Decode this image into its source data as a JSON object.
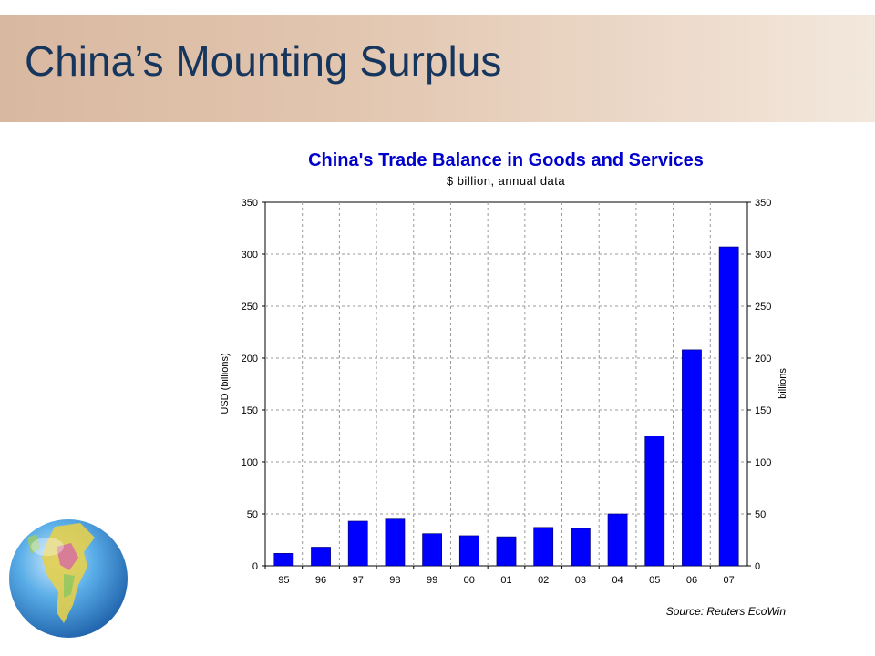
{
  "slide": {
    "title": "China’s Mounting Surplus"
  },
  "chart_data": {
    "type": "bar",
    "title": "China's Trade Balance in Goods and Services",
    "subtitle": "$ billion, annual data",
    "ylabel": "USD (billions)",
    "ylabel_right": "billions",
    "ylim": [
      0,
      350
    ],
    "yticks": [
      0,
      50,
      100,
      150,
      200,
      250,
      300,
      350
    ],
    "grid": true,
    "categories": [
      "95",
      "96",
      "97",
      "98",
      "99",
      "00",
      "01",
      "02",
      "03",
      "04",
      "05",
      "06",
      "07"
    ],
    "values": [
      12,
      18,
      43,
      45,
      31,
      29,
      28,
      37,
      36,
      50,
      125,
      208,
      307
    ],
    "bar_color": "#0000ff",
    "source": "Source: Reuters EcoWin"
  }
}
